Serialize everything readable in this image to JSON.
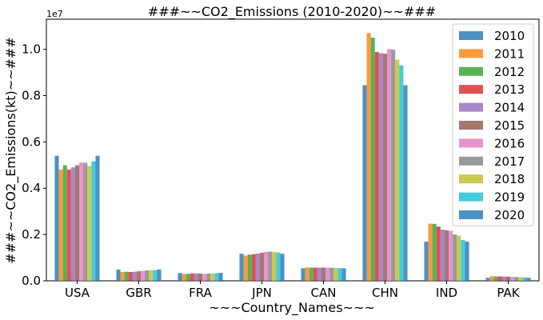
{
  "chart_data": {
    "type": "bar",
    "title": "###~~CO2_Emissions (2010-2020)~~###",
    "xlabel": "~~~Country_Names~~~",
    "ylabel": "###~~CO2_Emissions(kt)~~###",
    "y_multiplier_label": "1e7",
    "ylim": [
      0,
      11300000
    ],
    "yticks": [
      0,
      2000000,
      4000000,
      6000000,
      8000000,
      10000000
    ],
    "ytick_labels": [
      "0.0",
      "0.2",
      "0.4",
      "0.6",
      "0.8",
      "1.0"
    ],
    "grid": false,
    "legend_position": "top-right",
    "categories": [
      "USA",
      "GBR",
      "FRA",
      "JPN",
      "CAN",
      "CHN",
      "IND",
      "PAK"
    ],
    "series": [
      {
        "name": "2010",
        "color": "#1f77b4",
        "values": [
          5400000,
          490000,
          340000,
          1170000,
          540000,
          8450000,
          1690000,
          130000
        ]
      },
      {
        "name": "2011",
        "color": "#ff7f0e",
        "values": [
          4800000,
          380000,
          300000,
          1090000,
          580000,
          10700000,
          2470000,
          200000
        ]
      },
      {
        "name": "2012",
        "color": "#2ca02c",
        "values": [
          4990000,
          390000,
          300000,
          1130000,
          570000,
          10500000,
          2460000,
          190000
        ]
      },
      {
        "name": "2013",
        "color": "#d62728",
        "values": [
          4800000,
          380000,
          320000,
          1150000,
          570000,
          9880000,
          2340000,
          190000
        ]
      },
      {
        "name": "2014",
        "color": "#9467bd",
        "values": [
          4900000,
          390000,
          320000,
          1180000,
          570000,
          9830000,
          2210000,
          180000
        ]
      },
      {
        "name": "2015",
        "color": "#8c564b",
        "values": [
          4990000,
          410000,
          310000,
          1210000,
          570000,
          9810000,
          2180000,
          180000
        ]
      },
      {
        "name": "2016",
        "color": "#e377c2",
        "values": [
          5110000,
          430000,
          300000,
          1250000,
          570000,
          10010000,
          2160000,
          170000
        ]
      },
      {
        "name": "2017",
        "color": "#7f7f7f",
        "values": [
          5100000,
          450000,
          310000,
          1260000,
          560000,
          9980000,
          2000000,
          160000
        ]
      },
      {
        "name": "2018",
        "color": "#bcbd22",
        "values": [
          4960000,
          460000,
          320000,
          1250000,
          560000,
          9550000,
          1950000,
          160000
        ]
      },
      {
        "name": "2019",
        "color": "#17becf",
        "values": [
          5160000,
          460000,
          330000,
          1220000,
          550000,
          9310000,
          1760000,
          150000
        ]
      },
      {
        "name": "2020",
        "color": "#1f77b4",
        "values": [
          5400000,
          490000,
          340000,
          1170000,
          540000,
          8450000,
          1690000,
          130000
        ]
      }
    ]
  }
}
